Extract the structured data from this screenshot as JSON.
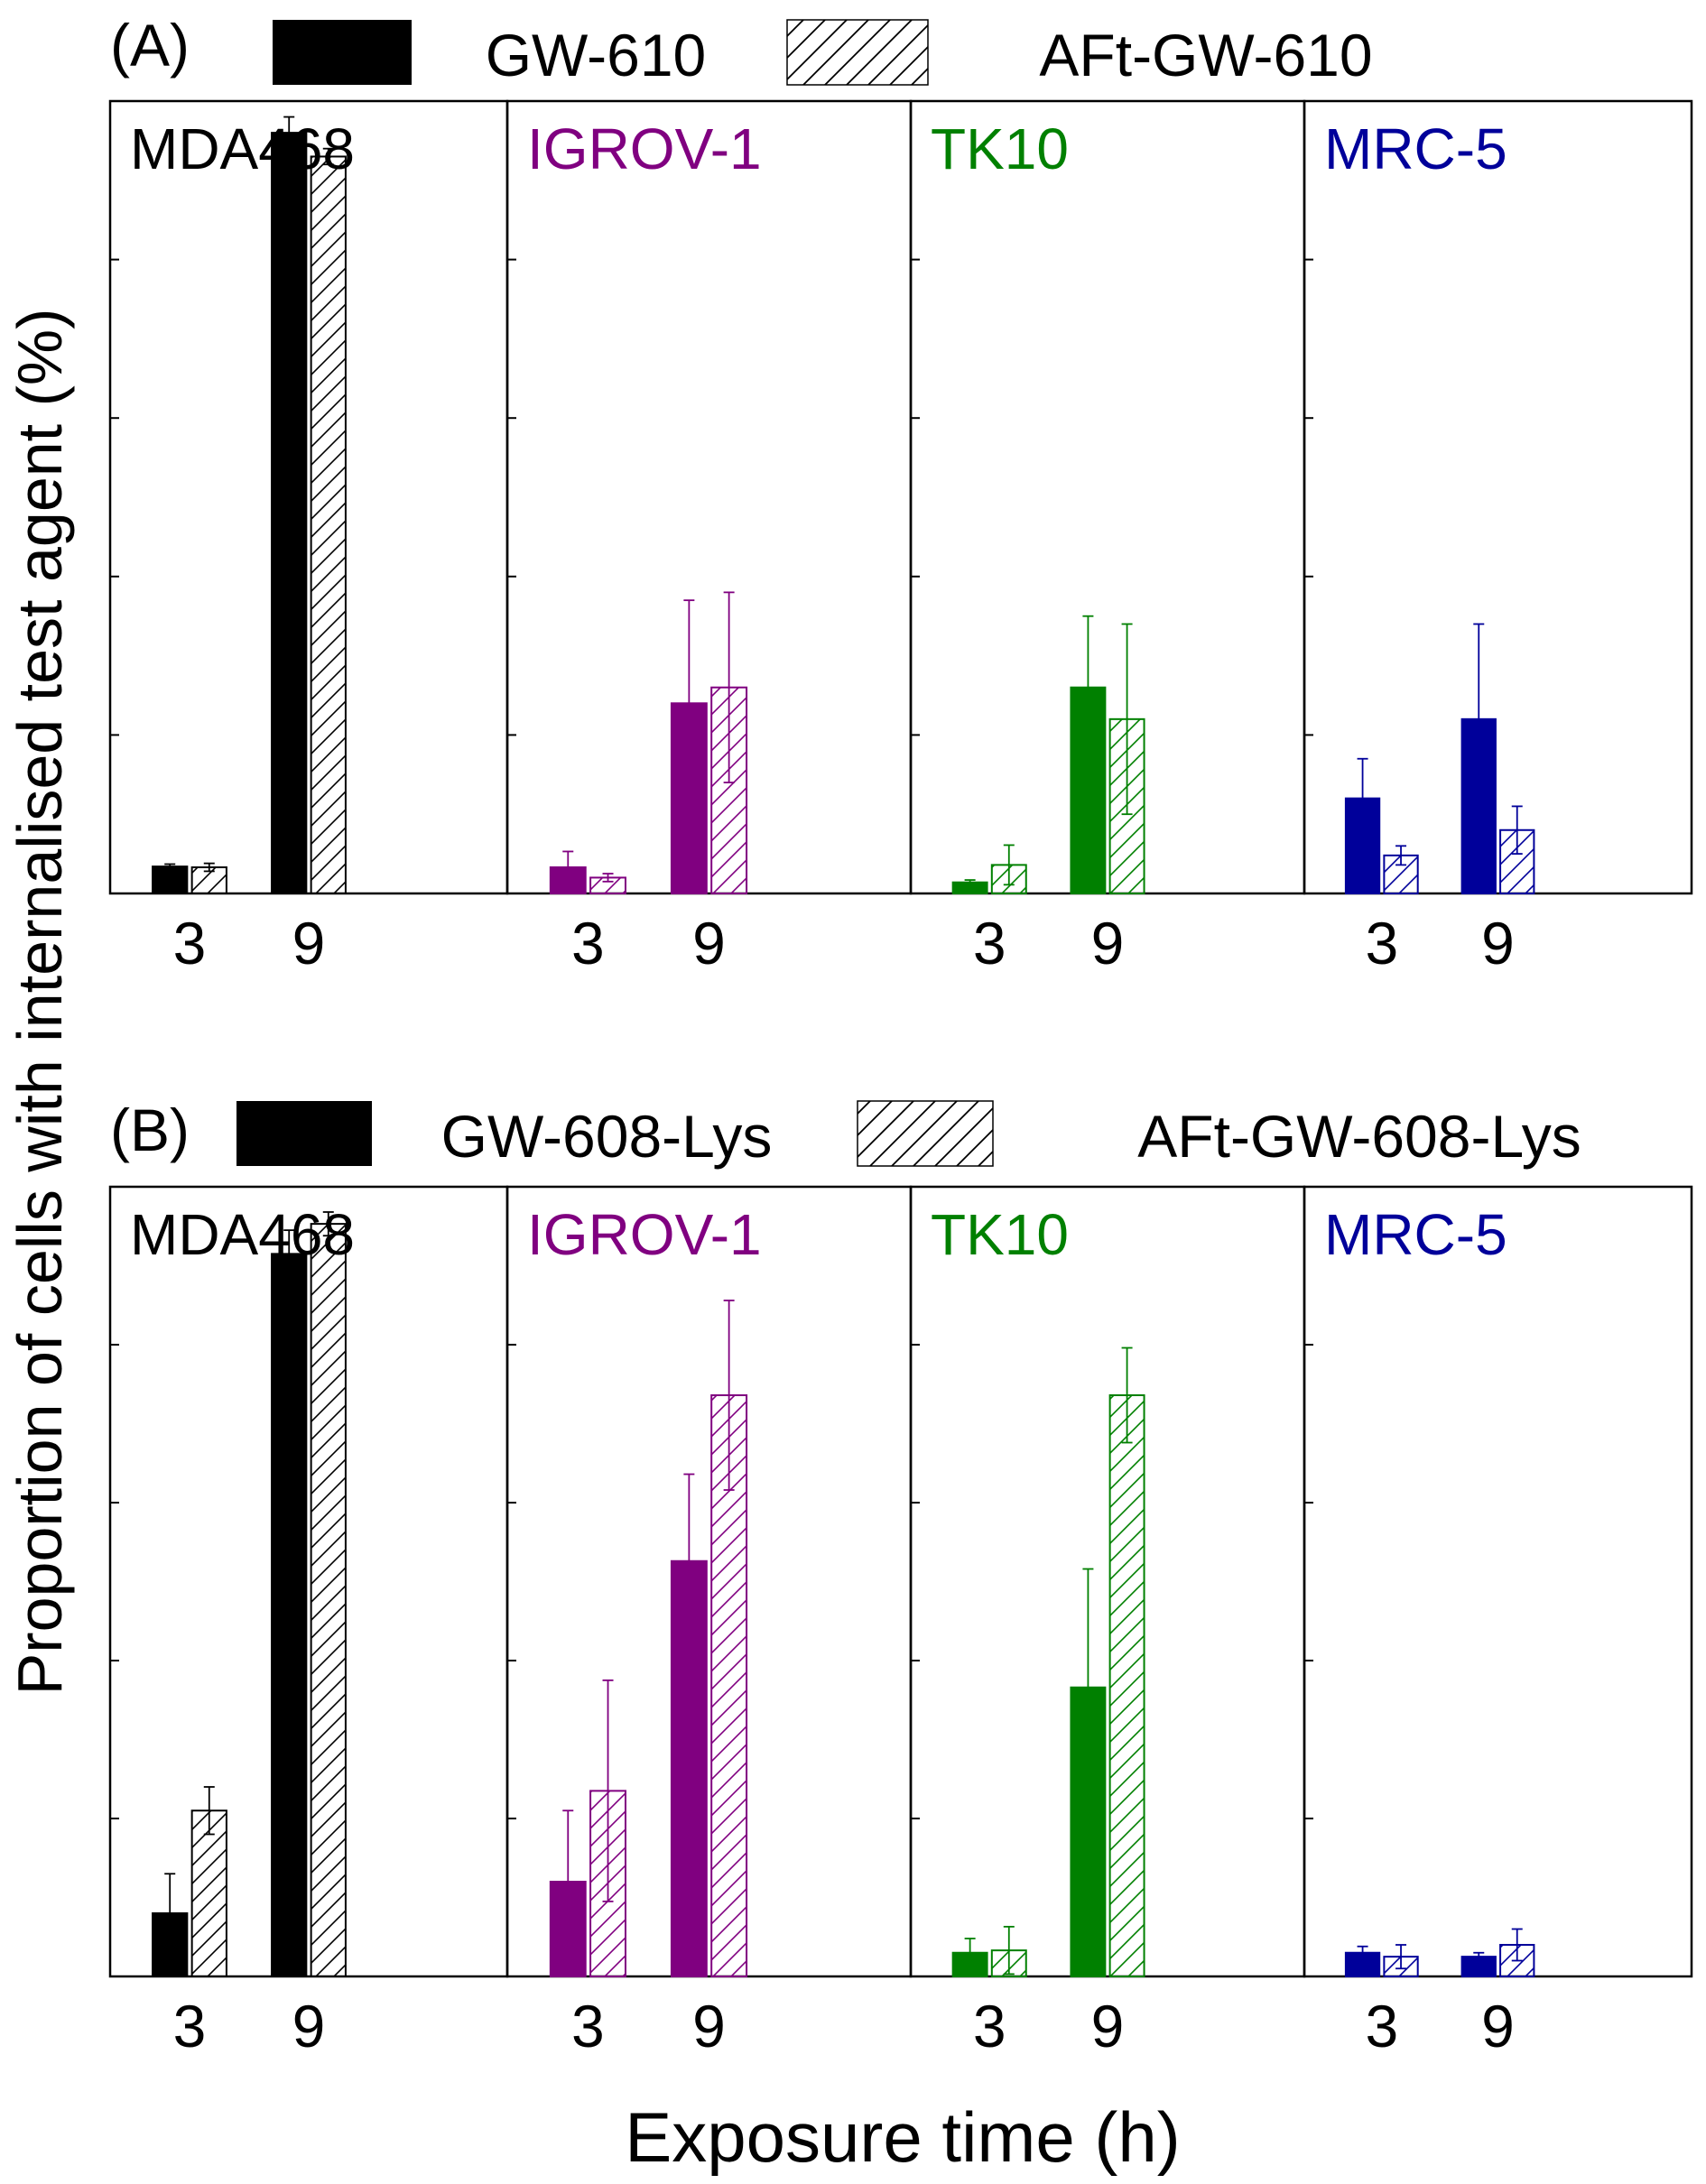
{
  "ylabel": "Proportion of cells with internalised test agent (%)",
  "xlabel": "Exposure time (h)",
  "colors": {
    "MDA468": "#000000",
    "IGROV-1": "#800080",
    "TK10": "#008000",
    "MRC-5": "#00009a"
  },
  "chart_data": [
    {
      "type": "bar",
      "panel_label": "(A)",
      "legend": [
        "GW-610",
        "AFt-GW-610"
      ],
      "categories": [
        "3",
        "9"
      ],
      "ylim": [
        0,
        100
      ],
      "subplots": [
        {
          "cell_line": "MDA468",
          "series": [
            {
              "name": "GW-610",
              "values": [
                3.4,
                96.0
              ],
              "errors": [
                0.3,
                2.0
              ]
            },
            {
              "name": "AFt-GW-610",
              "values": [
                3.3,
                93.0
              ],
              "errors": [
                0.5,
                1.0
              ]
            }
          ]
        },
        {
          "cell_line": "IGROV-1",
          "series": [
            {
              "name": "GW-610",
              "values": [
                3.3,
                24.0
              ],
              "errors": [
                2.0,
                13.0
              ]
            },
            {
              "name": "AFt-GW-610",
              "values": [
                2.0,
                26.0
              ],
              "errors": [
                0.5,
                12.0
              ]
            }
          ]
        },
        {
          "cell_line": "TK10",
          "series": [
            {
              "name": "GW-610",
              "values": [
                1.4,
                26.0
              ],
              "errors": [
                0.3,
                9.0
              ]
            },
            {
              "name": "AFt-GW-610",
              "values": [
                3.6,
                22.0
              ],
              "errors": [
                2.5,
                12.0
              ]
            }
          ]
        },
        {
          "cell_line": "MRC-5",
          "series": [
            {
              "name": "GW-610",
              "values": [
                12.0,
                22.0
              ],
              "errors": [
                5.0,
                12.0
              ]
            },
            {
              "name": "AFt-GW-610",
              "values": [
                4.8,
                8.0
              ],
              "errors": [
                1.2,
                3.0
              ]
            }
          ]
        }
      ]
    },
    {
      "type": "bar",
      "panel_label": "(B)",
      "legend": [
        "GW-608-Lys",
        "AFt-GW-608-Lys"
      ],
      "categories": [
        "3",
        "9"
      ],
      "ylim": [
        0,
        100
      ],
      "subplots": [
        {
          "cell_line": "MDA468",
          "series": [
            {
              "name": "GW-608-Lys",
              "values": [
                8.0,
                91.5
              ],
              "errors": [
                5.0,
                3.0
              ]
            },
            {
              "name": "AFt-GW-608-Lys",
              "values": [
                21.0,
                95.3
              ],
              "errors": [
                3.0,
                1.5
              ]
            }
          ]
        },
        {
          "cell_line": "IGROV-1",
          "series": [
            {
              "name": "GW-608-Lys",
              "values": [
                12.0,
                52.6
              ],
              "errors": [
                9.0,
                11.0
              ]
            },
            {
              "name": "AFt-GW-608-Lys",
              "values": [
                23.5,
                73.6
              ],
              "errors": [
                14.0,
                12.0
              ]
            }
          ]
        },
        {
          "cell_line": "TK10",
          "series": [
            {
              "name": "GW-608-Lys",
              "values": [
                3.0,
                36.6
              ],
              "errors": [
                1.8,
                15.0
              ]
            },
            {
              "name": "AFt-GW-608-Lys",
              "values": [
                3.3,
                73.6
              ],
              "errors": [
                3.0,
                6.0
              ]
            }
          ]
        },
        {
          "cell_line": "MRC-5",
          "series": [
            {
              "name": "GW-608-Lys",
              "values": [
                3.0,
                2.5
              ],
              "errors": [
                0.8,
                0.5
              ]
            },
            {
              "name": "AFt-GW-608-Lys",
              "values": [
                2.5,
                4.0
              ],
              "errors": [
                1.5,
                2.0
              ]
            }
          ]
        }
      ]
    }
  ]
}
